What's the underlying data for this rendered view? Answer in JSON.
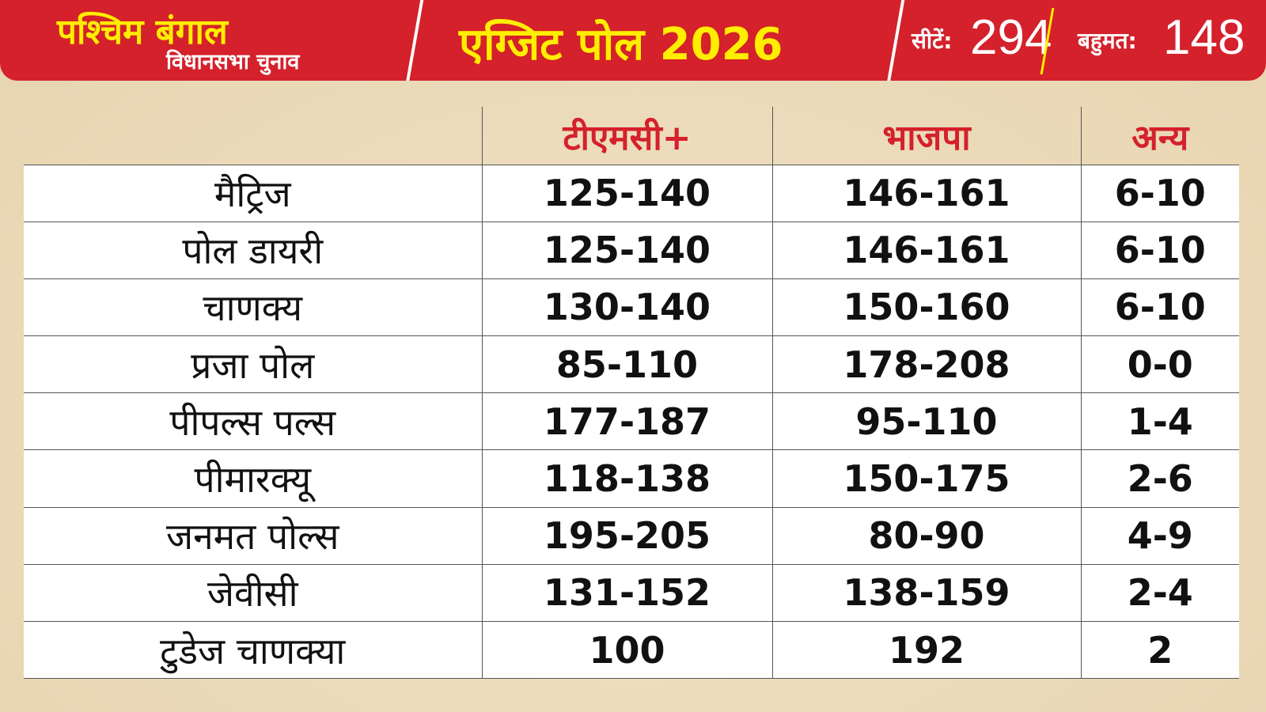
{
  "header": {
    "state": "पश्चिम बंगाल",
    "election": "विधानसभा चुनाव",
    "title": "एग्जिट पोल 2026",
    "seats_label": "सीटें:",
    "seats": "294",
    "majority_label": "बहुमत:",
    "majority": "148"
  },
  "colors": {
    "banner": "#d4212b",
    "title": "#ffee00"
  },
  "chart_data": {
    "type": "table",
    "columns": [
      "",
      "टीएमसी+",
      "भाजपा",
      "अन्य"
    ],
    "rows": [
      [
        "मैट्रिज",
        "125-140",
        "146-161",
        "6-10"
      ],
      [
        "पोल डायरी",
        "125-140",
        "146-161",
        "6-10"
      ],
      [
        "चाणक्य",
        "130-140",
        "150-160",
        "6-10"
      ],
      [
        "प्रजा पोल",
        "85-110",
        "178-208",
        "0-0"
      ],
      [
        "पीपल्स पल्स",
        "177-187",
        "95-110",
        "1-4"
      ],
      [
        "पीमारक्यू",
        "118-138",
        "150-175",
        "2-6"
      ],
      [
        "जनमत पोल्स",
        "195-205",
        "80-90",
        "4-9"
      ],
      [
        "जेवीसी",
        "131-152",
        "138-159",
        "2-4"
      ],
      [
        "टुडेज चाणक्या",
        "100",
        "192",
        "2"
      ]
    ]
  }
}
